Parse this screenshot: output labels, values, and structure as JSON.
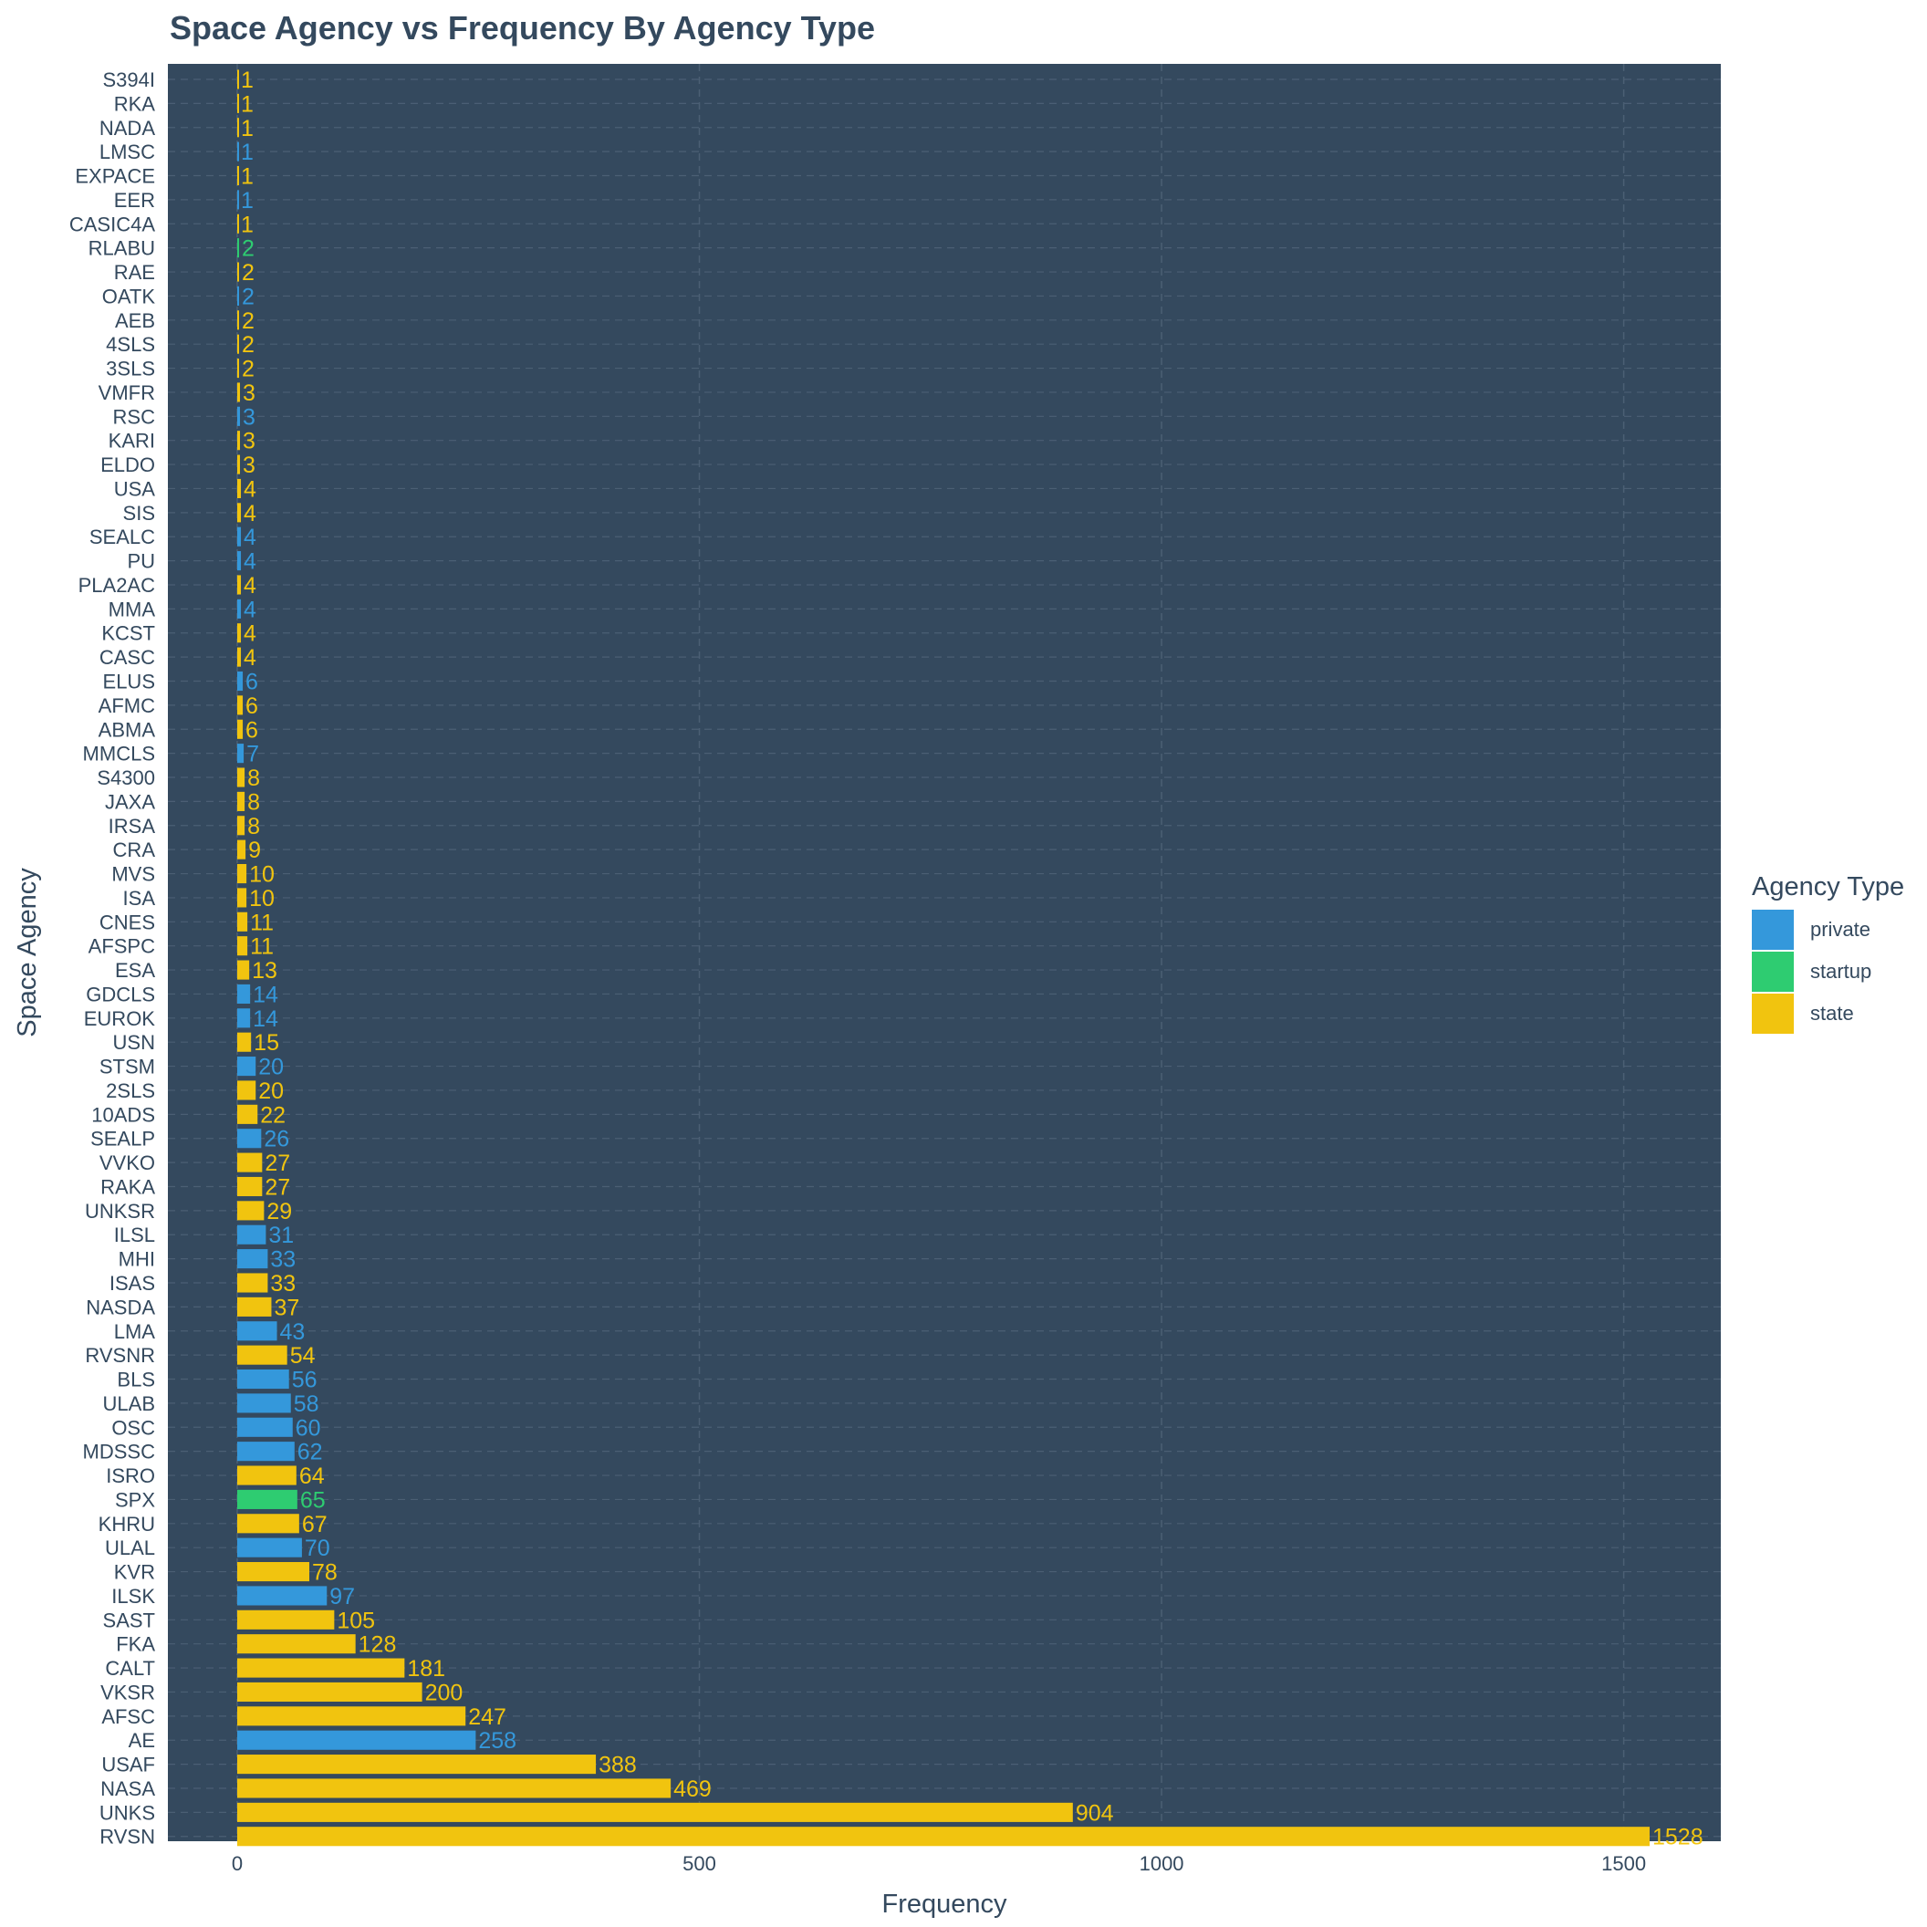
{
  "chart_data": {
    "type": "bar",
    "orientation": "horizontal",
    "title": "Space Agency vs Frequency By Agency Type",
    "xlabel": "Frequency",
    "ylabel": "Space Agency",
    "xlim": [
      -75,
      1605
    ],
    "xticks": [
      0,
      500,
      1000,
      1500
    ],
    "grid": true,
    "legend_position": "right",
    "legend_title": "Agency Type",
    "legend": [
      {
        "key": "private",
        "label": "private",
        "color": "#3498db"
      },
      {
        "key": "startup",
        "label": "startup",
        "color": "#2ecc71"
      },
      {
        "key": "state",
        "label": "state",
        "color": "#f1c40f"
      }
    ],
    "colors": {
      "panel": "#34495e",
      "text": "#34495e",
      "grid": "#4b5f74",
      "background": "#ffffff"
    },
    "bars": [
      {
        "agency": "S394I",
        "value": 1,
        "type": "state"
      },
      {
        "agency": "RKA",
        "value": 1,
        "type": "state"
      },
      {
        "agency": "NADA",
        "value": 1,
        "type": "state"
      },
      {
        "agency": "LMSC",
        "value": 1,
        "type": "private"
      },
      {
        "agency": "EXPACE",
        "value": 1,
        "type": "state"
      },
      {
        "agency": "EER",
        "value": 1,
        "type": "private"
      },
      {
        "agency": "CASIC4A",
        "value": 1,
        "type": "state"
      },
      {
        "agency": "RLABU",
        "value": 2,
        "type": "startup"
      },
      {
        "agency": "RAE",
        "value": 2,
        "type": "state"
      },
      {
        "agency": "OATK",
        "value": 2,
        "type": "private"
      },
      {
        "agency": "AEB",
        "value": 2,
        "type": "state"
      },
      {
        "agency": "4SLS",
        "value": 2,
        "type": "state"
      },
      {
        "agency": "3SLS",
        "value": 2,
        "type": "state"
      },
      {
        "agency": "VMFR",
        "value": 3,
        "type": "state"
      },
      {
        "agency": "RSC",
        "value": 3,
        "type": "private"
      },
      {
        "agency": "KARI",
        "value": 3,
        "type": "state"
      },
      {
        "agency": "ELDO",
        "value": 3,
        "type": "state"
      },
      {
        "agency": "USA",
        "value": 4,
        "type": "state"
      },
      {
        "agency": "SIS",
        "value": 4,
        "type": "state"
      },
      {
        "agency": "SEALC",
        "value": 4,
        "type": "private"
      },
      {
        "agency": "PU",
        "value": 4,
        "type": "private"
      },
      {
        "agency": "PLA2AC",
        "value": 4,
        "type": "state"
      },
      {
        "agency": "MMA",
        "value": 4,
        "type": "private"
      },
      {
        "agency": "KCST",
        "value": 4,
        "type": "state"
      },
      {
        "agency": "CASC",
        "value": 4,
        "type": "state"
      },
      {
        "agency": "ELUS",
        "value": 6,
        "type": "private"
      },
      {
        "agency": "AFMC",
        "value": 6,
        "type": "state"
      },
      {
        "agency": "ABMA",
        "value": 6,
        "type": "state"
      },
      {
        "agency": "MMCLS",
        "value": 7,
        "type": "private"
      },
      {
        "agency": "S4300",
        "value": 8,
        "type": "state"
      },
      {
        "agency": "JAXA",
        "value": 8,
        "type": "state"
      },
      {
        "agency": "IRSA",
        "value": 8,
        "type": "state"
      },
      {
        "agency": "CRA",
        "value": 9,
        "type": "state"
      },
      {
        "agency": "MVS",
        "value": 10,
        "type": "state"
      },
      {
        "agency": "ISA",
        "value": 10,
        "type": "state"
      },
      {
        "agency": "CNES",
        "value": 11,
        "type": "state"
      },
      {
        "agency": "AFSPC",
        "value": 11,
        "type": "state"
      },
      {
        "agency": "ESA",
        "value": 13,
        "type": "state"
      },
      {
        "agency": "GDCLS",
        "value": 14,
        "type": "private"
      },
      {
        "agency": "EUROK",
        "value": 14,
        "type": "private"
      },
      {
        "agency": "USN",
        "value": 15,
        "type": "state"
      },
      {
        "agency": "STSM",
        "value": 20,
        "type": "private"
      },
      {
        "agency": "2SLS",
        "value": 20,
        "type": "state"
      },
      {
        "agency": "10ADS",
        "value": 22,
        "type": "state"
      },
      {
        "agency": "SEALP",
        "value": 26,
        "type": "private"
      },
      {
        "agency": "VVKO",
        "value": 27,
        "type": "state"
      },
      {
        "agency": "RAKA",
        "value": 27,
        "type": "state"
      },
      {
        "agency": "UNKSR",
        "value": 29,
        "type": "state"
      },
      {
        "agency": "ILSL",
        "value": 31,
        "type": "private"
      },
      {
        "agency": "MHI",
        "value": 33,
        "type": "private"
      },
      {
        "agency": "ISAS",
        "value": 33,
        "type": "state"
      },
      {
        "agency": "NASDA",
        "value": 37,
        "type": "state"
      },
      {
        "agency": "LMA",
        "value": 43,
        "type": "private"
      },
      {
        "agency": "RVSNR",
        "value": 54,
        "type": "state"
      },
      {
        "agency": "BLS",
        "value": 56,
        "type": "private"
      },
      {
        "agency": "ULAB",
        "value": 58,
        "type": "private"
      },
      {
        "agency": "OSC",
        "value": 60,
        "type": "private"
      },
      {
        "agency": "MDSSC",
        "value": 62,
        "type": "private"
      },
      {
        "agency": "ISRO",
        "value": 64,
        "type": "state"
      },
      {
        "agency": "SPX",
        "value": 65,
        "type": "startup"
      },
      {
        "agency": "KHRU",
        "value": 67,
        "type": "state"
      },
      {
        "agency": "ULAL",
        "value": 70,
        "type": "private"
      },
      {
        "agency": "KVR",
        "value": 78,
        "type": "state"
      },
      {
        "agency": "ILSK",
        "value": 97,
        "type": "private"
      },
      {
        "agency": "SAST",
        "value": 105,
        "type": "state"
      },
      {
        "agency": "FKA",
        "value": 128,
        "type": "state"
      },
      {
        "agency": "CALT",
        "value": 181,
        "type": "state"
      },
      {
        "agency": "VKSR",
        "value": 200,
        "type": "state"
      },
      {
        "agency": "AFSC",
        "value": 247,
        "type": "state"
      },
      {
        "agency": "AE",
        "value": 258,
        "type": "private"
      },
      {
        "agency": "USAF",
        "value": 388,
        "type": "state"
      },
      {
        "agency": "NASA",
        "value": 469,
        "type": "state"
      },
      {
        "agency": "UNKS",
        "value": 904,
        "type": "state"
      },
      {
        "agency": "RVSN",
        "value": 1528,
        "type": "state"
      }
    ]
  }
}
